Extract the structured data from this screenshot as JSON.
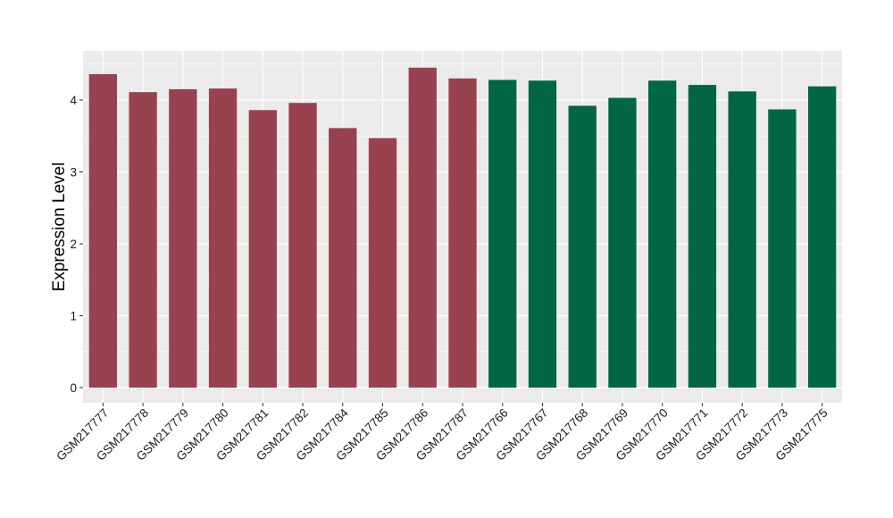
{
  "chart_data": {
    "type": "bar",
    "ylabel": "Expression Level",
    "xlabel": "",
    "ylim": [
      -0.2,
      4.65
    ],
    "yticks": [
      0,
      1,
      2,
      3,
      4
    ],
    "grid": true,
    "categories": [
      "GSM217777",
      "GSM217778",
      "GSM217779",
      "GSM217780",
      "GSM217781",
      "GSM217782",
      "GSM217784",
      "GSM217785",
      "GSM217786",
      "GSM217787",
      "GSM217766",
      "GSM217767",
      "GSM217768",
      "GSM217769",
      "GSM217770",
      "GSM217771",
      "GSM217772",
      "GSM217773",
      "GSM217775"
    ],
    "values": [
      4.36,
      4.11,
      4.15,
      4.16,
      3.86,
      3.96,
      3.61,
      3.47,
      4.45,
      4.3,
      4.28,
      4.27,
      3.92,
      4.03,
      4.27,
      4.21,
      4.12,
      3.87,
      4.19
    ],
    "groups": [
      "a",
      "a",
      "a",
      "a",
      "a",
      "a",
      "a",
      "a",
      "a",
      "a",
      "b",
      "b",
      "b",
      "b",
      "b",
      "b",
      "b",
      "b",
      "b"
    ],
    "group_colors": {
      "a": "#98414f",
      "b": "#006644"
    },
    "panel_background": "#ebebeb",
    "gridline_color": "#ffffff"
  }
}
